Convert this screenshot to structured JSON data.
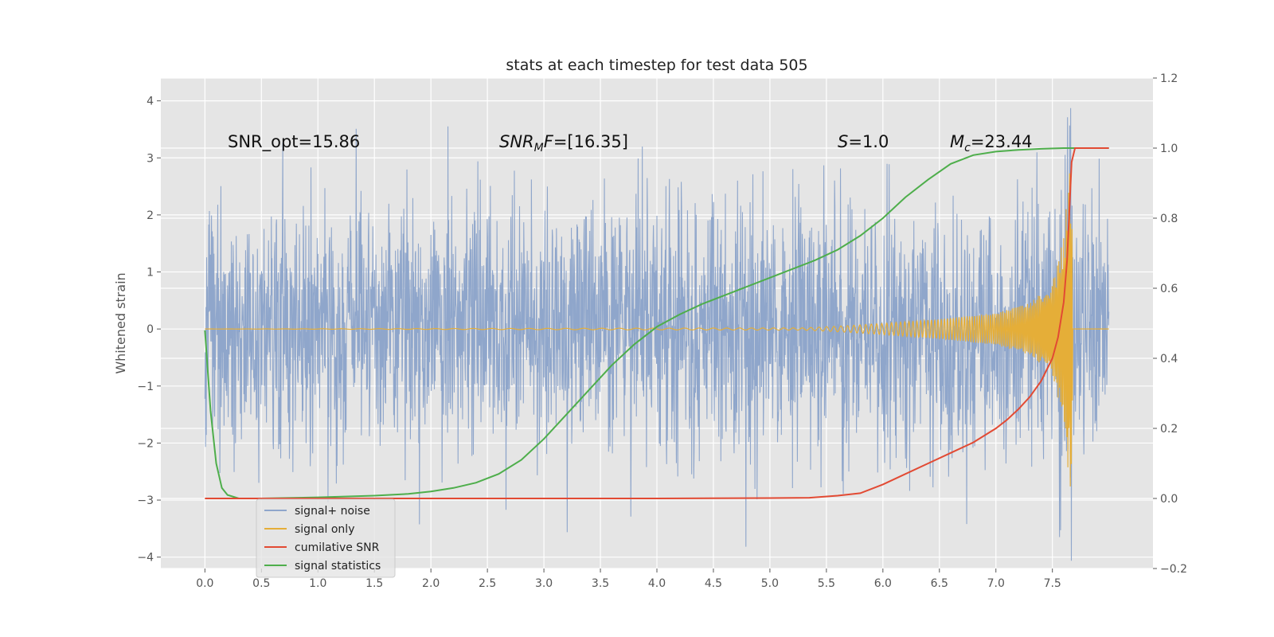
{
  "chart_data": {
    "type": "line",
    "title": "stats at each timestep for test data 505",
    "ylabel": "Whitened strain",
    "xlabel": "",
    "xlim": [
      -0.39,
      8.39
    ],
    "ylim": [
      -4.2,
      4.4
    ],
    "ylim_right": [
      -0.2,
      1.2
    ],
    "x_ticks": [
      "0.0",
      "0.5",
      "1.0",
      "1.5",
      "2.0",
      "2.5",
      "3.0",
      "3.5",
      "4.0",
      "4.5",
      "5.0",
      "5.5",
      "6.0",
      "6.5",
      "7.0",
      "7.5"
    ],
    "x_tick_values": [
      0,
      0.5,
      1,
      1.5,
      2,
      2.5,
      3,
      3.5,
      4,
      4.5,
      5,
      5.5,
      6,
      6.5,
      7,
      7.5
    ],
    "y_ticks": [
      "−4",
      "−3",
      "−2",
      "−1",
      "0",
      "1",
      "2",
      "3",
      "4"
    ],
    "y_tick_values": [
      -4,
      -3,
      -2,
      -1,
      0,
      1,
      2,
      3,
      4
    ],
    "y_ticks_right": [
      "−0.2",
      "0.0",
      "0.2",
      "0.4",
      "0.6",
      "0.8",
      "1.0",
      "1.2"
    ],
    "y_tick_values_right": [
      -0.2,
      0,
      0.2,
      0.4,
      0.6,
      0.8,
      1.0,
      1.2
    ],
    "grid": true,
    "legend_position": "lower-left",
    "annotations": [
      {
        "id": "snr_opt",
        "text": "SNR_opt=15.86",
        "x": 0.2,
        "y": 3.25
      },
      {
        "id": "snr_mf",
        "text": "SNR_MF=[16.35]",
        "x": 2.6,
        "y": 3.25
      },
      {
        "id": "s",
        "text": "S=1.0",
        "x": 5.6,
        "y": 3.25
      },
      {
        "id": "mc",
        "text": "M_c=23.44",
        "x": 6.6,
        "y": 3.25
      }
    ],
    "series": [
      {
        "name": "signal+ noise",
        "axis": "left",
        "color": "#8fa6cb",
        "description": "noisy whitened strain, roughly Gaussian noise with sigma about 1.1 spanning x 0 to 8, values within about -3.8 to 4.0"
      },
      {
        "name": "signal only",
        "axis": "left",
        "color": "#e5ae38",
        "description": "chirp waveform, amplitude near 0 until about x 5.3 then growing to about ±3 near x 7.65",
        "x": [
          0,
          5.3,
          5.7,
          6.0,
          6.5,
          7.0,
          7.3,
          7.5,
          7.6,
          7.66,
          7.7,
          8.0
        ],
        "amplitude": [
          0,
          0.02,
          0.06,
          0.1,
          0.17,
          0.28,
          0.45,
          0.8,
          1.6,
          3.0,
          0,
          0
        ]
      },
      {
        "name": "cumilative SNR",
        "axis": "right",
        "color": "#e24a33",
        "x": [
          0,
          1,
          2,
          3,
          4,
          5,
          5.35,
          5.6,
          5.8,
          6.0,
          6.2,
          6.4,
          6.6,
          6.8,
          7.0,
          7.1,
          7.2,
          7.3,
          7.4,
          7.5,
          7.55,
          7.6,
          7.63,
          7.65,
          7.67,
          7.7,
          8.0
        ],
        "y": [
          0,
          0,
          0,
          0,
          0,
          0.001,
          0.002,
          0.008,
          0.015,
          0.04,
          0.07,
          0.1,
          0.13,
          0.16,
          0.2,
          0.225,
          0.255,
          0.29,
          0.335,
          0.4,
          0.46,
          0.56,
          0.68,
          0.82,
          0.96,
          1.0,
          1.0
        ]
      },
      {
        "name": "signal statistics",
        "axis": "right",
        "color": "#4eae4b",
        "x": [
          0,
          0.05,
          0.1,
          0.15,
          0.2,
          0.3,
          0.5,
          1.0,
          1.5,
          1.8,
          2.0,
          2.2,
          2.4,
          2.6,
          2.8,
          3.0,
          3.2,
          3.4,
          3.6,
          3.8,
          4.0,
          4.2,
          4.4,
          4.6,
          4.8,
          5.0,
          5.2,
          5.4,
          5.6,
          5.8,
          6.0,
          6.2,
          6.4,
          6.6,
          6.8,
          7.0,
          7.2,
          7.4,
          7.6,
          8.0
        ],
        "y": [
          0.48,
          0.25,
          0.1,
          0.03,
          0.01,
          0.0,
          0.0,
          0.003,
          0.008,
          0.013,
          0.02,
          0.03,
          0.045,
          0.07,
          0.11,
          0.17,
          0.24,
          0.31,
          0.38,
          0.44,
          0.49,
          0.525,
          0.555,
          0.58,
          0.605,
          0.63,
          0.655,
          0.68,
          0.71,
          0.75,
          0.8,
          0.86,
          0.91,
          0.955,
          0.98,
          0.99,
          0.995,
          0.998,
          1.0,
          1.0
        ]
      }
    ]
  }
}
